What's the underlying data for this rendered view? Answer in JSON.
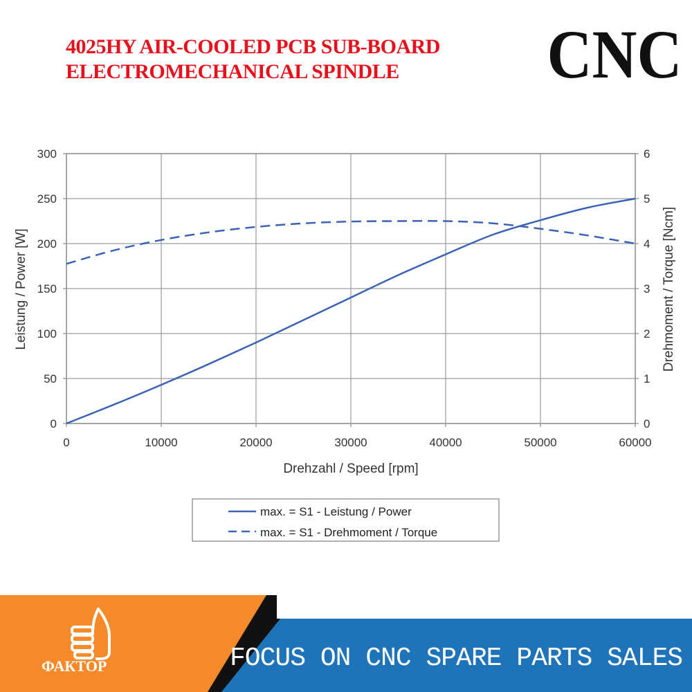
{
  "header": {
    "title_line1": "4025HY AIR-COOLED PCB SUB-BOARD",
    "title_line2": "ELECTROMECHANICAL SPINDLE",
    "brand": "CNC"
  },
  "footer": {
    "slogan": "FOCUS ON CNC SPARE PARTS SALES",
    "logo_text": "ФАКТОР",
    "logo_icon": "thumbs-up-icon",
    "colors": {
      "orange": "#f58a2b",
      "blue": "#1f73b8",
      "dark": "#111111"
    }
  },
  "chart_data": {
    "type": "line",
    "xlabel": "Drehzahl / Speed [rpm]",
    "ylabel": "Leistung / Power [W]",
    "y2label": "Drehmoment / Torque [Ncm]",
    "xlim": [
      0,
      60000
    ],
    "ylim": [
      0,
      300
    ],
    "y2lim": [
      0,
      6
    ],
    "xticks": [
      "0",
      "10000",
      "20000",
      "30000",
      "40000",
      "50000",
      "60000"
    ],
    "yticks": [
      "0",
      "50",
      "100",
      "150",
      "200",
      "250",
      "300"
    ],
    "y2ticks": [
      "0",
      "1",
      "2",
      "3",
      "4",
      "5",
      "6"
    ],
    "grid": true,
    "legend_position": "bottom",
    "line_color": "#3a62b5",
    "series": [
      {
        "name": "max. = S1 - Leistung / Power",
        "axis": "left",
        "style": "solid",
        "x": [
          0,
          5000,
          10000,
          15000,
          20000,
          25000,
          30000,
          35000,
          40000,
          45000,
          50000,
          55000,
          60000
        ],
        "values": [
          0,
          21,
          43,
          66,
          90,
          115,
          140,
          165,
          188,
          210,
          226,
          240,
          250
        ]
      },
      {
        "name": "max. = S1 - Drehmoment / Torque",
        "axis": "right",
        "style": "dashed",
        "x": [
          0,
          5000,
          10000,
          15000,
          20000,
          25000,
          30000,
          35000,
          40000,
          45000,
          50000,
          55000,
          60000
        ],
        "values": [
          3.55,
          3.85,
          4.08,
          4.25,
          4.37,
          4.45,
          4.49,
          4.5,
          4.5,
          4.45,
          4.33,
          4.18,
          4.0
        ]
      }
    ]
  }
}
